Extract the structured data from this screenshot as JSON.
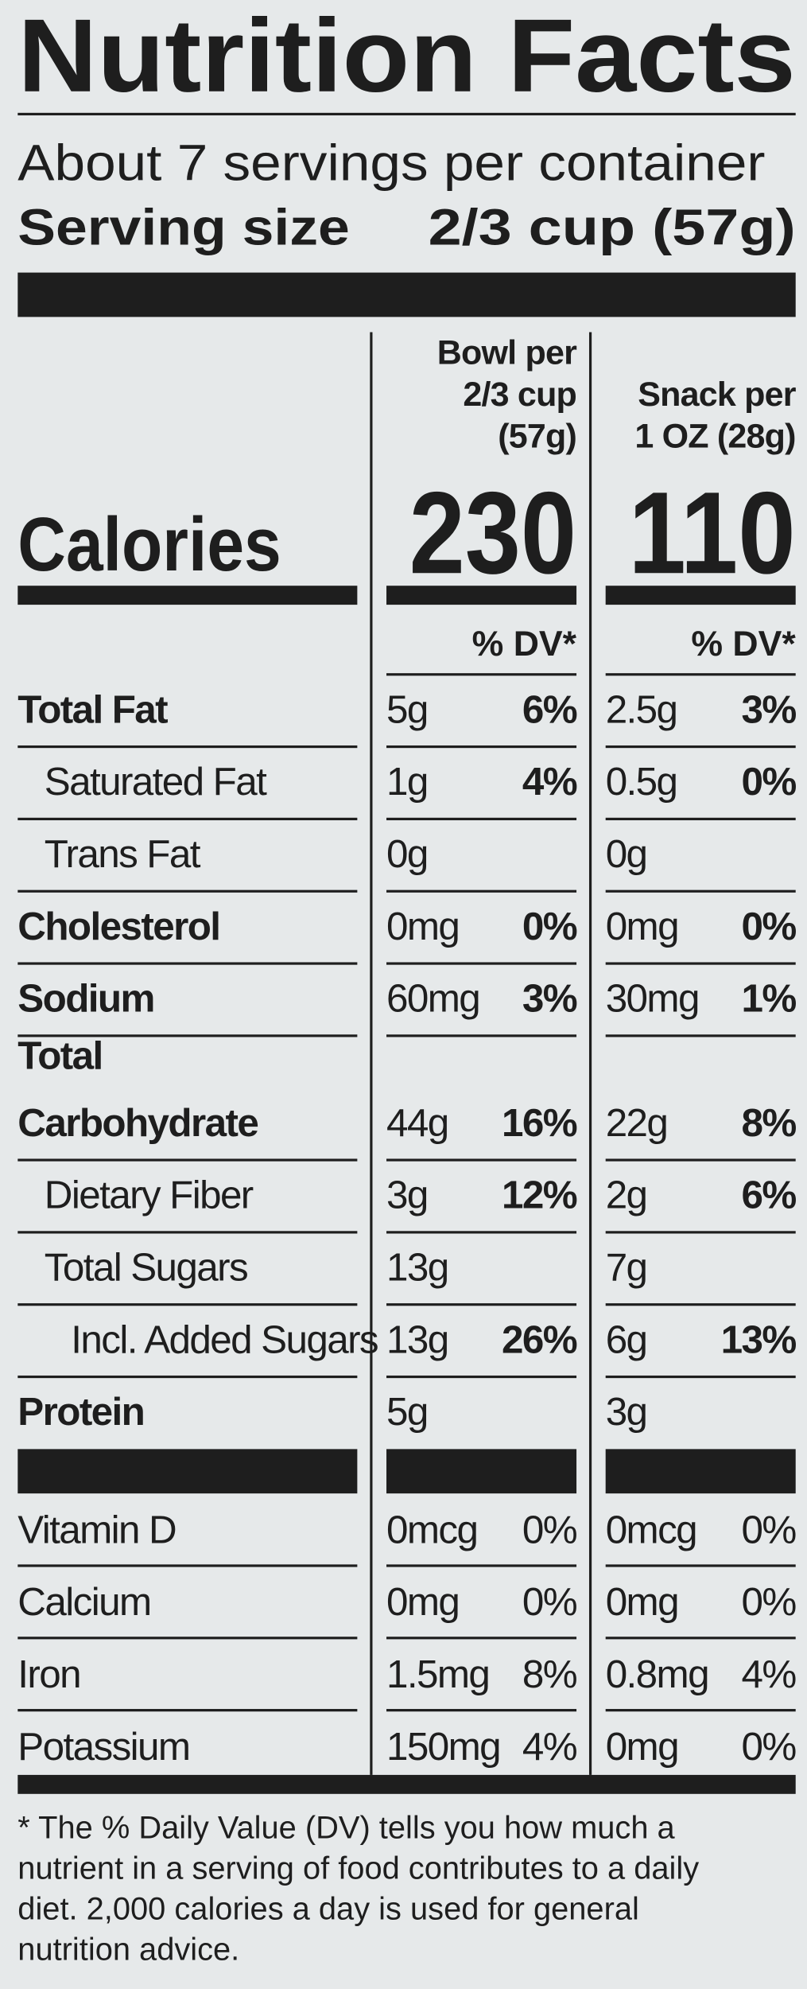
{
  "title": "Nutrition Facts",
  "servings": "About 7 servings per container",
  "serving_size": {
    "label": "Serving size",
    "value": "2/3 cup (57g)"
  },
  "calories_label": "Calories",
  "columns": [
    {
      "header": [
        "Bowl per",
        "2/3 cup",
        "(57g)"
      ],
      "calories": "230",
      "dv_header": "% DV*"
    },
    {
      "header": [
        "Snack per",
        "1 OZ (28g)"
      ],
      "calories": "110",
      "dv_header": "% DV*"
    }
  ],
  "nutrients": [
    {
      "name": "Total Fat",
      "bold": true,
      "indent": 0,
      "values": [
        [
          "5g",
          "6%"
        ],
        [
          "2.5g",
          "3%"
        ]
      ]
    },
    {
      "name": "Saturated Fat",
      "bold": false,
      "indent": 1,
      "values": [
        [
          "1g",
          "4%"
        ],
        [
          "0.5g",
          "0%"
        ]
      ]
    },
    {
      "name": "Trans Fat",
      "bold": false,
      "indent": 1,
      "values": [
        [
          "0g",
          null
        ],
        [
          "0g",
          null
        ]
      ]
    },
    {
      "name": "Cholesterol",
      "bold": true,
      "indent": 0,
      "values": [
        [
          "0mg",
          "0%"
        ],
        [
          "0mg",
          "0%"
        ]
      ]
    },
    {
      "name": "Sodium",
      "bold": true,
      "indent": 0,
      "values": [
        [
          "60mg",
          "3%"
        ],
        [
          "30mg",
          "1%"
        ]
      ]
    },
    {
      "name": [
        "Total",
        "Carbohydrate"
      ],
      "bold": true,
      "indent": 0,
      "values": [
        [
          "44g",
          "16%"
        ],
        [
          "22g",
          "8%"
        ]
      ]
    },
    {
      "name": "Dietary Fiber",
      "bold": false,
      "indent": 1,
      "values": [
        [
          "3g",
          "12%"
        ],
        [
          "2g",
          "6%"
        ]
      ]
    },
    {
      "name": "Total Sugars",
      "bold": false,
      "indent": 1,
      "values": [
        [
          "13g",
          null
        ],
        [
          "7g",
          null
        ]
      ]
    },
    {
      "name": "Incl. Added Sugars",
      "bold": false,
      "indent": 2,
      "values": [
        [
          "13g",
          "26%"
        ],
        [
          "6g",
          "13%"
        ]
      ]
    },
    {
      "name": "Protein",
      "bold": true,
      "indent": 0,
      "values": [
        [
          "5g",
          null
        ],
        [
          "3g",
          null
        ]
      ]
    }
  ],
  "vitamins": [
    {
      "name": "Vitamin D",
      "values": [
        [
          "0mcg",
          "0%"
        ],
        [
          "0mcg",
          "0%"
        ]
      ]
    },
    {
      "name": "Calcium",
      "values": [
        [
          "0mg",
          "0%"
        ],
        [
          "0mg",
          "0%"
        ]
      ]
    },
    {
      "name": "Iron",
      "values": [
        [
          "1.5mg",
          "8%"
        ],
        [
          "0.8mg",
          "4%"
        ]
      ]
    },
    {
      "name": "Potassium",
      "values": [
        [
          "150mg",
          "4%"
        ],
        [
          "0mg",
          "0%"
        ]
      ]
    }
  ],
  "footnote": [
    "* The % Daily Value (DV) tells you how much a",
    "nutrient in a serving of food contributes to a daily",
    "diet. 2,000 calories a day is used for general",
    "nutrition advice."
  ]
}
